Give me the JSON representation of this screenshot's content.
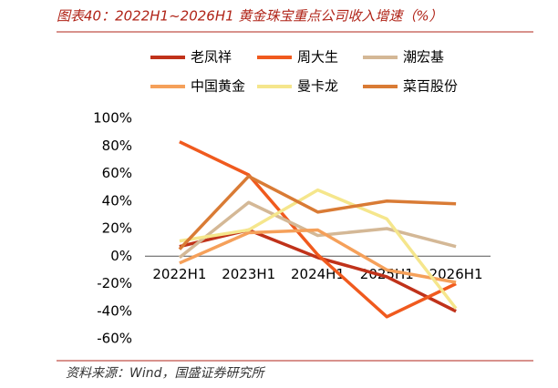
{
  "chart_data": {
    "type": "line",
    "title": "图表40：2022H1~2026H1 黄金珠宝重点公司收入增速（%）",
    "source": "资料来源：Wind，国盛证券研究所",
    "categories": [
      "2022H1",
      "2023H1",
      "2024H1",
      "2025H1",
      "2026H1"
    ],
    "series": [
      {
        "name": "老凤祥",
        "color": "#c0321a",
        "values": [
          7,
          19,
          -1,
          -15,
          -40
        ]
      },
      {
        "name": "周大生",
        "color": "#f05a1e",
        "values": [
          83,
          59,
          1,
          -44,
          -20
        ]
      },
      {
        "name": "潮宏基",
        "color": "#d4b896",
        "values": [
          -1,
          39,
          15,
          20,
          7
        ]
      },
      {
        "name": "中国黄金",
        "color": "#f5a05a",
        "values": [
          -5,
          17,
          19,
          -10,
          -19
        ]
      },
      {
        "name": "曼卡龙",
        "color": "#f5e68c",
        "values": [
          11,
          19,
          48,
          27,
          -38
        ]
      },
      {
        "name": "菜百股份",
        "color": "#d97b35",
        "values": [
          5,
          58,
          32,
          40,
          38
        ]
      }
    ],
    "ylim": [
      -60,
      100
    ],
    "yticks": [
      {
        "value": -60,
        "label": "-60%"
      },
      {
        "value": -40,
        "label": "-40%"
      },
      {
        "value": -20,
        "label": "-20%"
      },
      {
        "value": 0,
        "label": "0%"
      },
      {
        "value": 20,
        "label": "20%"
      },
      {
        "value": 40,
        "label": "40%"
      },
      {
        "value": 60,
        "label": "60%"
      },
      {
        "value": 80,
        "label": "80%"
      },
      {
        "value": 100,
        "label": "100%"
      }
    ],
    "legend": "top"
  }
}
